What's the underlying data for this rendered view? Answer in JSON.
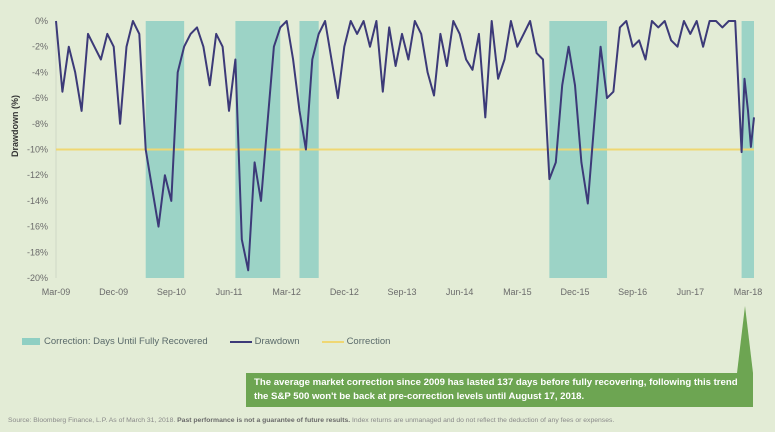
{
  "colors": {
    "correction_shade": "#8fcfc3",
    "drawdown_line": "#3c3a78",
    "correction_line": "#efd773",
    "callout_bg": "#6da552",
    "page_bg": "#e3ecd6"
  },
  "chart_data": {
    "type": "line",
    "ylabel": "Drawdown (%)",
    "ylim": [
      -20,
      0
    ],
    "y_ticks": [
      "0%",
      "-2%",
      "-4%",
      "-6%",
      "-8%",
      "-10%",
      "-12%",
      "-14%",
      "-16%",
      "-18%",
      "-20%"
    ],
    "x_ticks": [
      "Mar-09",
      "Dec-09",
      "Sep-10",
      "Jun-11",
      "Mar-12",
      "Dec-12",
      "Sep-13",
      "Jun-14",
      "Mar-15",
      "Dec-15",
      "Sep-16",
      "Jun-17",
      "Mar-18"
    ],
    "x_range": [
      "2009-03",
      "2018-03"
    ],
    "correction_level": -10,
    "series": [
      {
        "name": "Drawdown",
        "points": [
          [
            "2009-03",
            0
          ],
          [
            "2009-04",
            -5.5
          ],
          [
            "2009-05",
            -2
          ],
          [
            "2009-06",
            -4
          ],
          [
            "2009-07",
            -7
          ],
          [
            "2009-08",
            -1
          ],
          [
            "2009-09",
            -2
          ],
          [
            "2009-10",
            -3
          ],
          [
            "2009-11",
            -1
          ],
          [
            "2009-12",
            -2
          ],
          [
            "2010-01",
            -8
          ],
          [
            "2010-02",
            -2
          ],
          [
            "2010-03",
            0
          ],
          [
            "2010-04",
            -1
          ],
          [
            "2010-05",
            -10
          ],
          [
            "2010-06",
            -13
          ],
          [
            "2010-07",
            -16
          ],
          [
            "2010-08",
            -12
          ],
          [
            "2010-09",
            -14
          ],
          [
            "2010-10",
            -4
          ],
          [
            "2010-11",
            -2
          ],
          [
            "2010-12",
            -1
          ],
          [
            "2011-01",
            -0.5
          ],
          [
            "2011-02",
            -2
          ],
          [
            "2011-03",
            -5
          ],
          [
            "2011-04",
            -1
          ],
          [
            "2011-05",
            -2
          ],
          [
            "2011-06",
            -7
          ],
          [
            "2011-07",
            -3
          ],
          [
            "2011-08",
            -17
          ],
          [
            "2011-09",
            -19.4
          ],
          [
            "2011-10",
            -11
          ],
          [
            "2011-11",
            -14
          ],
          [
            "2011-12",
            -8
          ],
          [
            "2012-01",
            -2
          ],
          [
            "2012-02",
            -0.5
          ],
          [
            "2012-03",
            0
          ],
          [
            "2012-04",
            -3
          ],
          [
            "2012-05",
            -7
          ],
          [
            "2012-06",
            -10
          ],
          [
            "2012-07",
            -3
          ],
          [
            "2012-08",
            -1
          ],
          [
            "2012-09",
            0
          ],
          [
            "2012-10",
            -3
          ],
          [
            "2012-11",
            -6
          ],
          [
            "2012-12",
            -2
          ],
          [
            "2013-01",
            0
          ],
          [
            "2013-02",
            -1
          ],
          [
            "2013-03",
            0
          ],
          [
            "2013-04",
            -2
          ],
          [
            "2013-05",
            0
          ],
          [
            "2013-06",
            -5.5
          ],
          [
            "2013-07",
            -0.5
          ],
          [
            "2013-08",
            -3.5
          ],
          [
            "2013-09",
            -1
          ],
          [
            "2013-10",
            -3
          ],
          [
            "2013-11",
            0
          ],
          [
            "2013-12",
            -1
          ],
          [
            "2014-01",
            -4
          ],
          [
            "2014-02",
            -5.8
          ],
          [
            "2014-03",
            -1
          ],
          [
            "2014-04",
            -3.5
          ],
          [
            "2014-05",
            0
          ],
          [
            "2014-06",
            -1
          ],
          [
            "2014-07",
            -3
          ],
          [
            "2014-08",
            -3.8
          ],
          [
            "2014-09",
            -1
          ],
          [
            "2014-10",
            -7.5
          ],
          [
            "2014-11",
            0
          ],
          [
            "2014-12",
            -4.5
          ],
          [
            "2015-01",
            -3
          ],
          [
            "2015-02",
            0
          ],
          [
            "2015-03",
            -2
          ],
          [
            "2015-04",
            -1
          ],
          [
            "2015-05",
            0
          ],
          [
            "2015-06",
            -2.5
          ],
          [
            "2015-07",
            -3
          ],
          [
            "2015-08",
            -12.3
          ],
          [
            "2015-09",
            -11
          ],
          [
            "2015-10",
            -5
          ],
          [
            "2015-11",
            -2
          ],
          [
            "2015-12",
            -5
          ],
          [
            "2016-01",
            -11
          ],
          [
            "2016-02",
            -14.2
          ],
          [
            "2016-03",
            -8
          ],
          [
            "2016-04",
            -2
          ],
          [
            "2016-05",
            -6
          ],
          [
            "2016-06",
            -5.5
          ],
          [
            "2016-07",
            -0.5
          ],
          [
            "2016-08",
            0
          ],
          [
            "2016-09",
            -2
          ],
          [
            "2016-10",
            -1.5
          ],
          [
            "2016-11",
            -3
          ],
          [
            "2016-12",
            0
          ],
          [
            "2017-01",
            -0.5
          ],
          [
            "2017-02",
            0
          ],
          [
            "2017-03",
            -1.5
          ],
          [
            "2017-04",
            -2
          ],
          [
            "2017-05",
            0
          ],
          [
            "2017-06",
            -1
          ],
          [
            "2017-07",
            0
          ],
          [
            "2017-08",
            -2
          ],
          [
            "2017-09",
            0
          ],
          [
            "2017-10",
            0
          ],
          [
            "2017-11",
            -0.5
          ],
          [
            "2017-12",
            0
          ],
          [
            "2018-01",
            0
          ],
          [
            "2018-02",
            -10.2
          ],
          [
            "2018-02-15",
            -4.5
          ],
          [
            "2018-03",
            -7
          ],
          [
            "2018-03-15",
            -9.8
          ],
          [
            "2018-03-31",
            -7.5
          ]
        ]
      }
    ],
    "correction_periods": [
      [
        "2010-05",
        "2010-11"
      ],
      [
        "2011-07",
        "2012-02"
      ],
      [
        "2012-05",
        "2012-08"
      ],
      [
        "2015-08",
        "2016-05"
      ],
      [
        "2018-02",
        "2018-03-31"
      ]
    ]
  },
  "legend": {
    "items": [
      {
        "label": "Correction: Days Until Fully Recovered"
      },
      {
        "label": "Drawdown"
      },
      {
        "label": "Correction"
      }
    ]
  },
  "callout": {
    "text": "The average market correction since 2009 has lasted 137 days before fully recovering, following this trend the S&P 500 won't be back at pre-correction levels until August 17, 2018."
  },
  "source": {
    "lead": "Source: Bloomberg Finance, L.P. As of March 31, 2018.",
    "bold": "Past performance is not a guarantee of future results.",
    "tail": "Index returns are unmanaged and do not reflect the deduction of any fees or expenses."
  }
}
